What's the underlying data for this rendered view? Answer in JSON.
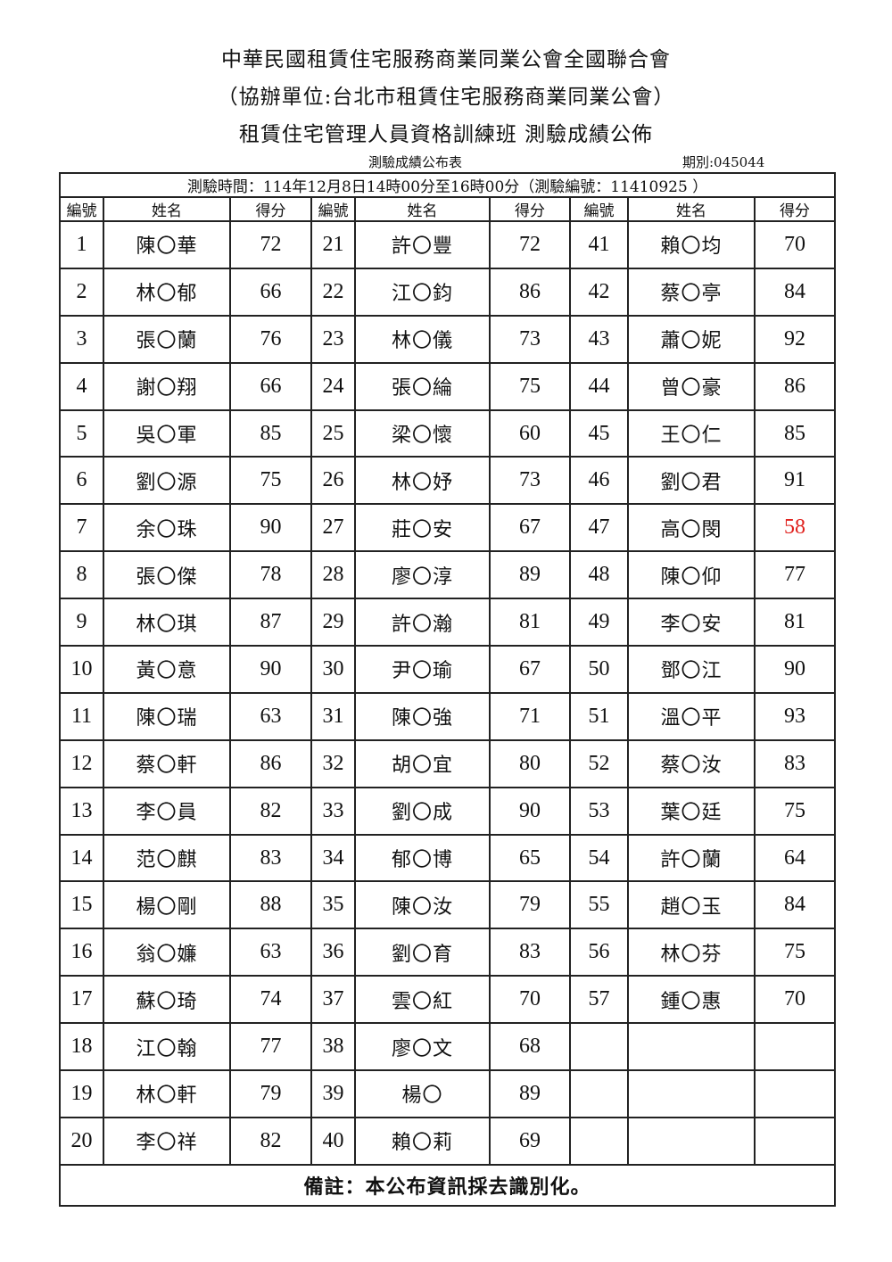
{
  "header": {
    "line1": "中華民國租賃住宅服務商業同業公會全國聯合會",
    "line2": "（協辦單位:台北市租賃住宅服務商業同業公會）",
    "line3": "租賃住宅管理人員資格訓練班 測驗成績公佈",
    "table_name": "測驗成績公布表",
    "period": "期別:045044"
  },
  "exam_time": "測驗時間：114年12月8日14時00分至16時00分（測驗編號：11410925 ）",
  "columns": [
    "編號",
    "姓名",
    "得分"
  ],
  "fail_color": "#e0201c",
  "students": [
    {
      "no": "1",
      "name": "陳〇華",
      "score": "72"
    },
    {
      "no": "2",
      "name": "林〇郁",
      "score": "66"
    },
    {
      "no": "3",
      "name": "張〇蘭",
      "score": "76"
    },
    {
      "no": "4",
      "name": "謝〇翔",
      "score": "66"
    },
    {
      "no": "5",
      "name": "吳〇軍",
      "score": "85"
    },
    {
      "no": "6",
      "name": "劉〇源",
      "score": "75"
    },
    {
      "no": "7",
      "name": "余〇珠",
      "score": "90"
    },
    {
      "no": "8",
      "name": "張〇傑",
      "score": "78"
    },
    {
      "no": "9",
      "name": "林〇琪",
      "score": "87"
    },
    {
      "no": "10",
      "name": "黃〇意",
      "score": "90"
    },
    {
      "no": "11",
      "name": "陳〇瑞",
      "score": "63"
    },
    {
      "no": "12",
      "name": "蔡〇軒",
      "score": "86"
    },
    {
      "no": "13",
      "name": "李〇員",
      "score": "82"
    },
    {
      "no": "14",
      "name": "范〇麒",
      "score": "83"
    },
    {
      "no": "15",
      "name": "楊〇剛",
      "score": "88"
    },
    {
      "no": "16",
      "name": "翁〇嬚",
      "score": "63"
    },
    {
      "no": "17",
      "name": "蘇〇琦",
      "score": "74"
    },
    {
      "no": "18",
      "name": "江〇翰",
      "score": "77"
    },
    {
      "no": "19",
      "name": "林〇軒",
      "score": "79"
    },
    {
      "no": "20",
      "name": "李〇祥",
      "score": "82"
    },
    {
      "no": "21",
      "name": "許〇豐",
      "score": "72"
    },
    {
      "no": "22",
      "name": "江〇鈞",
      "score": "86"
    },
    {
      "no": "23",
      "name": "林〇儀",
      "score": "73"
    },
    {
      "no": "24",
      "name": "張〇綸",
      "score": "75"
    },
    {
      "no": "25",
      "name": "梁〇懷",
      "score": "60"
    },
    {
      "no": "26",
      "name": "林〇妤",
      "score": "73"
    },
    {
      "no": "27",
      "name": "莊〇安",
      "score": "67"
    },
    {
      "no": "28",
      "name": "廖〇淳",
      "score": "89"
    },
    {
      "no": "29",
      "name": "許〇瀚",
      "score": "81"
    },
    {
      "no": "30",
      "name": "尹〇瑜",
      "score": "67"
    },
    {
      "no": "31",
      "name": "陳〇強",
      "score": "71"
    },
    {
      "no": "32",
      "name": "胡〇宜",
      "score": "80"
    },
    {
      "no": "33",
      "name": "劉〇成",
      "score": "90"
    },
    {
      "no": "34",
      "name": "郁〇博",
      "score": "65"
    },
    {
      "no": "35",
      "name": "陳〇汝",
      "score": "79"
    },
    {
      "no": "36",
      "name": "劉〇育",
      "score": "83"
    },
    {
      "no": "37",
      "name": "雲〇紅",
      "score": "70"
    },
    {
      "no": "38",
      "name": "廖〇文",
      "score": "68"
    },
    {
      "no": "39",
      "name": "楊〇",
      "score": "89"
    },
    {
      "no": "40",
      "name": "賴〇莉",
      "score": "69"
    },
    {
      "no": "41",
      "name": "賴〇均",
      "score": "70"
    },
    {
      "no": "42",
      "name": "蔡〇亭",
      "score": "84"
    },
    {
      "no": "43",
      "name": "蕭〇妮",
      "score": "92"
    },
    {
      "no": "44",
      "name": "曾〇豪",
      "score": "86"
    },
    {
      "no": "45",
      "name": "王〇仁",
      "score": "85"
    },
    {
      "no": "46",
      "name": "劉〇君",
      "score": "91"
    },
    {
      "no": "47",
      "name": "高〇閔",
      "score": "58",
      "fail": true
    },
    {
      "no": "48",
      "name": "陳〇仰",
      "score": "77"
    },
    {
      "no": "49",
      "name": "李〇安",
      "score": "81"
    },
    {
      "no": "50",
      "name": "鄧〇江",
      "score": "90"
    },
    {
      "no": "51",
      "name": "溫〇平",
      "score": "93"
    },
    {
      "no": "52",
      "name": "蔡〇汝",
      "score": "83"
    },
    {
      "no": "53",
      "name": "葉〇廷",
      "score": "75"
    },
    {
      "no": "54",
      "name": "許〇蘭",
      "score": "64"
    },
    {
      "no": "55",
      "name": "趙〇玉",
      "score": "84"
    },
    {
      "no": "56",
      "name": "林〇芬",
      "score": "75"
    },
    {
      "no": "57",
      "name": "鍾〇惠",
      "score": "70"
    }
  ],
  "footer_note": "備註：本公布資訊採去識別化。"
}
